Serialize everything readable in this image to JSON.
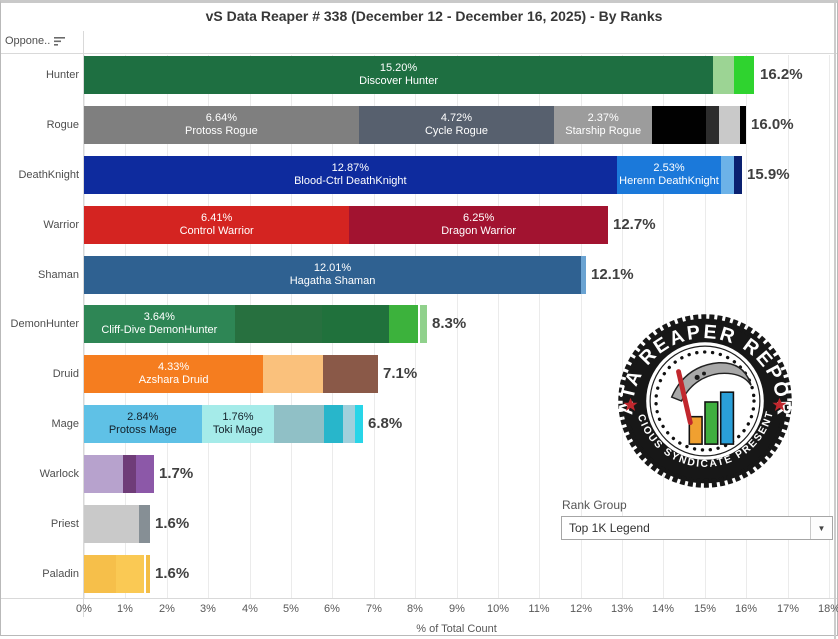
{
  "header": {
    "title": "vS Data Reaper # 338 (December 12 - December 16, 2025) - By Ranks",
    "column_label": "Oppone.."
  },
  "filter": {
    "label": "Rank Group",
    "value": "Top 1K Legend",
    "arrow": "▼"
  },
  "logo": {
    "top_text": "DATA REAPER REPORT",
    "bottom_text": "VICIOUS SYNDICATE PRESENTS"
  },
  "chart_data": {
    "type": "bar",
    "orientation": "horizontal-stacked",
    "title": "vS Data Reaper # 338 (December 12 - December 16, 2025) - By Ranks",
    "xlabel": "% of Total Count",
    "x_max": 18,
    "x_ticks": [
      "0%",
      "1%",
      "2%",
      "3%",
      "4%",
      "5%",
      "6%",
      "7%",
      "8%",
      "9%",
      "10%",
      "11%",
      "12%",
      "13%",
      "14%",
      "15%",
      "16%",
      "17%",
      "18%"
    ],
    "rows": [
      {
        "category": "Hunter",
        "total": 16.2,
        "total_label": "16.2%",
        "segments": [
          {
            "value": 15.2,
            "pct_label": "15.20%",
            "name_label": "Discover Hunter",
            "color": "#1e6f41",
            "text_color": "#ffffff"
          },
          {
            "value": 0.5,
            "color": "#9cd494"
          },
          {
            "value": 0.5,
            "color": "#2fd32f"
          }
        ]
      },
      {
        "category": "Rogue",
        "total": 16.0,
        "total_label": "16.0%",
        "segments": [
          {
            "value": 6.64,
            "pct_label": "6.64%",
            "name_label": "Protoss Rogue",
            "color": "#7f7f7f",
            "text_color": "#ffffff"
          },
          {
            "value": 4.72,
            "pct_label": "4.72%",
            "name_label": "Cycle Rogue",
            "color": "#57606e",
            "text_color": "#ffffff"
          },
          {
            "value": 2.37,
            "pct_label": "2.37%",
            "name_label": "Starship Rogue",
            "color": "#9c9c9c",
            "text_color": "#ffffff"
          },
          {
            "value": 1.3,
            "color": "#010101"
          },
          {
            "value": 0.32,
            "color": "#2d2d2d"
          },
          {
            "value": 0.5,
            "color": "#c9c9c9"
          },
          {
            "value": 0.15,
            "color": "#000000"
          }
        ]
      },
      {
        "category": "DeathKnight",
        "total": 15.9,
        "total_label": "15.9%",
        "segments": [
          {
            "value": 12.87,
            "pct_label": "12.87%",
            "name_label": "Blood-Ctrl DeathKnight",
            "color": "#0e2b9e",
            "text_color": "#ffffff"
          },
          {
            "value": 2.53,
            "pct_label": "2.53%",
            "name_label": "Herenn DeathKnight",
            "color": "#1b79da",
            "text_color": "#ffffff"
          },
          {
            "value": 0.3,
            "color": "#6cb2e8"
          },
          {
            "value": 0.2,
            "color": "#0a2070"
          }
        ]
      },
      {
        "category": "Warrior",
        "total": 12.7,
        "total_label": "12.7%",
        "segments": [
          {
            "value": 6.41,
            "pct_label": "6.41%",
            "name_label": "Control Warrior",
            "color": "#d42421",
            "text_color": "#ffffff"
          },
          {
            "value": 6.25,
            "pct_label": "6.25%",
            "name_label": "Dragon Warrior",
            "color": "#a21330",
            "text_color": "#ffffff"
          }
        ]
      },
      {
        "category": "Shaman",
        "total": 12.1,
        "total_label": "12.1%",
        "segments": [
          {
            "value": 12.01,
            "pct_label": "12.01%",
            "name_label": "Hagatha Shaman",
            "color": "#2f6191",
            "text_color": "#ffffff"
          },
          {
            "value": 0.12,
            "color": "#6aa3d2"
          }
        ]
      },
      {
        "category": "DemonHunter",
        "total": 8.3,
        "total_label": "8.3%",
        "segments": [
          {
            "value": 3.64,
            "pct_label": "3.64%",
            "name_label": "Cliff-Dive DemonHunter",
            "color": "#2e8655",
            "text_color": "#ffffff"
          },
          {
            "value": 2.1,
            "color": "#27703f"
          },
          {
            "value": 1.63,
            "color": "#20713c"
          },
          {
            "value": 0.7,
            "color": "#3cb23c"
          },
          {
            "value": 0.06,
            "color": "#ffffff"
          },
          {
            "value": 0.15,
            "color": "#90d18c"
          }
        ]
      },
      {
        "category": "Druid",
        "total": 7.1,
        "total_label": "7.1%",
        "segments": [
          {
            "value": 4.33,
            "pct_label": "4.33%",
            "name_label": "Azshara Druid",
            "color": "#f57d1f",
            "text_color": "#ffffff"
          },
          {
            "value": 1.45,
            "color": "#fac17c"
          },
          {
            "value": 1.33,
            "color": "#8a5948"
          }
        ]
      },
      {
        "category": "Mage",
        "total": 6.8,
        "total_label": "6.8%",
        "segments": [
          {
            "value": 2.84,
            "pct_label": "2.84%",
            "name_label": "Protoss Mage",
            "color": "#5fc1e6",
            "text_color": "#13212a"
          },
          {
            "value": 1.76,
            "pct_label": "1.76%",
            "name_label": "Toki Mage",
            "color": "#a5ebe9",
            "text_color": "#13212a"
          },
          {
            "value": 1.2,
            "color": "#90c0c6"
          },
          {
            "value": 0.45,
            "color": "#28b6cb"
          },
          {
            "value": 0.3,
            "color": "#a0d0dc"
          },
          {
            "value": 0.18,
            "color": "#28d5e8"
          }
        ]
      },
      {
        "category": "Warlock",
        "total": 1.7,
        "total_label": "1.7%",
        "segments": [
          {
            "value": 0.95,
            "color": "#b7a2cd"
          },
          {
            "value": 0.3,
            "color": "#6f3c78"
          },
          {
            "value": 0.45,
            "color": "#8c58a8"
          }
        ]
      },
      {
        "category": "Priest",
        "total": 1.6,
        "total_label": "1.6%",
        "segments": [
          {
            "value": 1.32,
            "color": "#c9c9c9"
          },
          {
            "value": 0.28,
            "color": "#868f95"
          }
        ]
      },
      {
        "category": "Paladin",
        "total": 1.6,
        "total_label": "1.6%",
        "segments": [
          {
            "value": 0.78,
            "color": "#f6bf4a"
          },
          {
            "value": 0.67,
            "color": "#fac954"
          },
          {
            "value": 0.05,
            "color": "#ffffff"
          },
          {
            "value": 0.1,
            "color": "#f3bd45"
          }
        ]
      }
    ]
  }
}
